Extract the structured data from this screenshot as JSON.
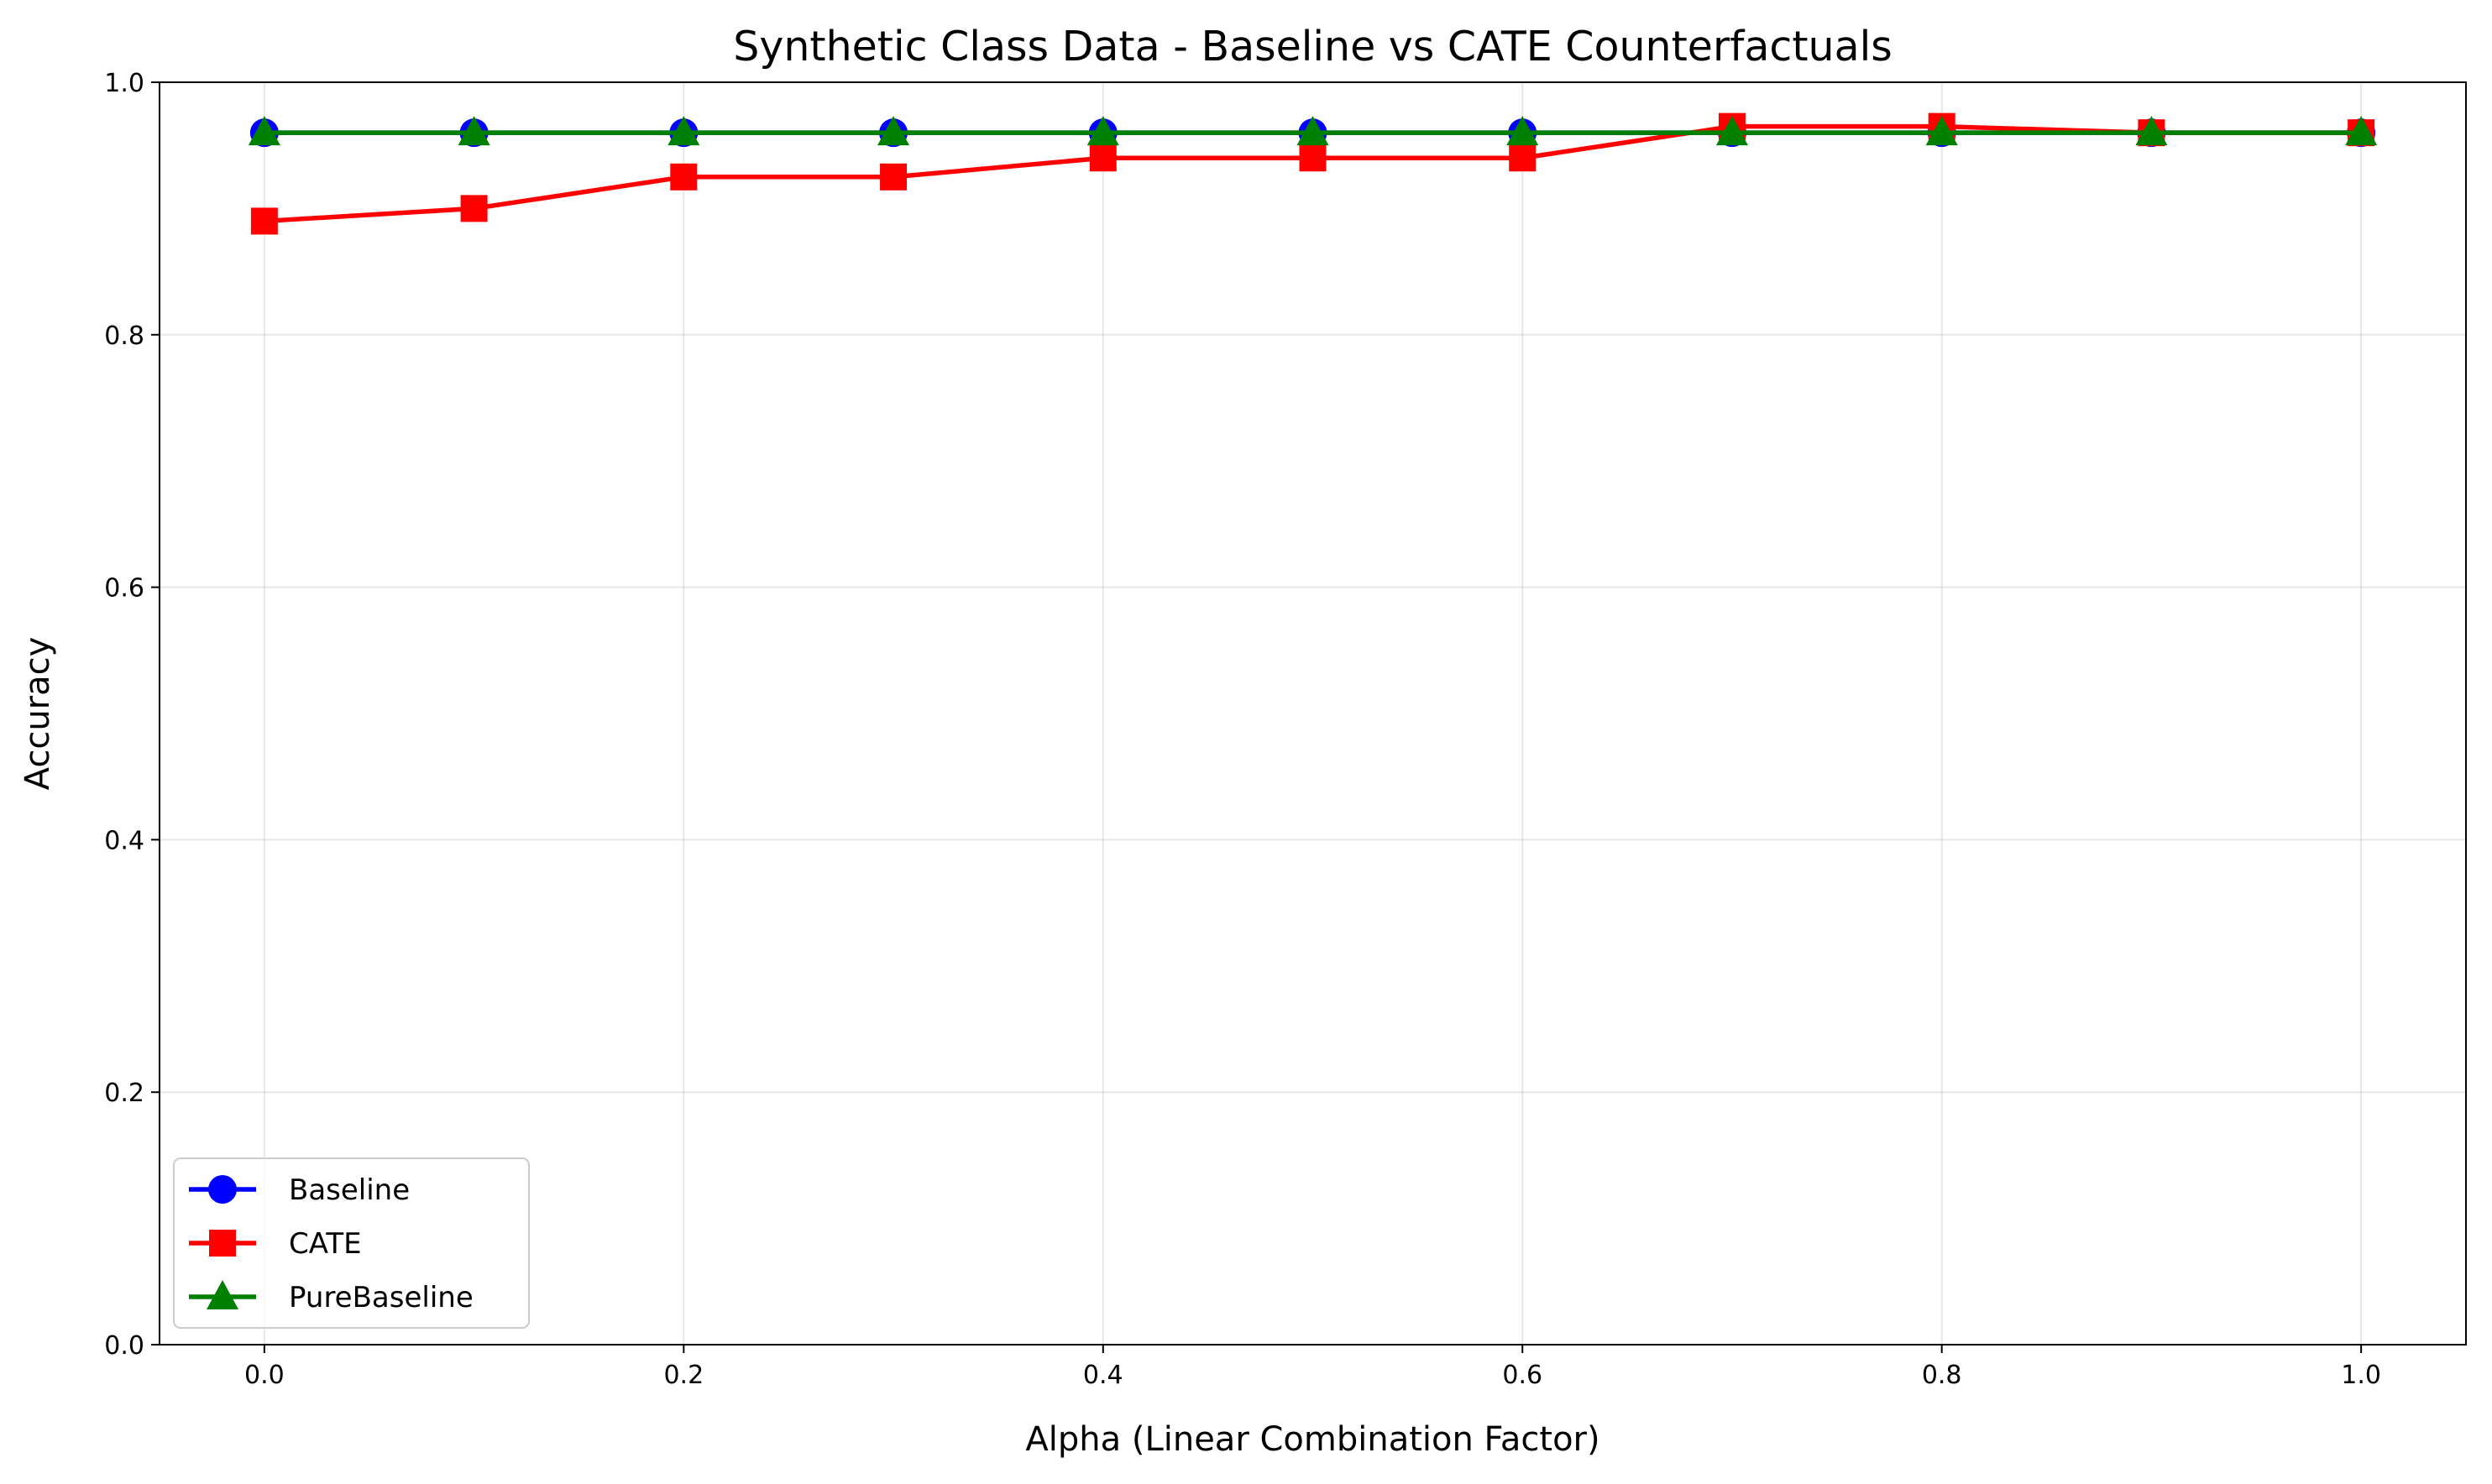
{
  "chart_data": {
    "type": "line",
    "title": "Synthetic Class Data - Baseline vs CATE Counterfactuals",
    "xlabel": "Alpha (Linear Combination Factor)",
    "ylabel": "Accuracy",
    "x": [
      0.0,
      0.1,
      0.2,
      0.3,
      0.4,
      0.5,
      0.6,
      0.7,
      0.8,
      0.9,
      1.0
    ],
    "xlim": [
      -0.05,
      1.05
    ],
    "ylim": [
      0.0,
      1.0
    ],
    "xticks": [
      "0.0",
      "0.2",
      "0.4",
      "0.6",
      "0.8",
      "1.0"
    ],
    "yticks": [
      "0.0",
      "0.2",
      "0.4",
      "0.6",
      "0.8",
      "1.0"
    ],
    "grid": true,
    "legend_position": "lower-left",
    "series": [
      {
        "name": "Baseline",
        "color": "#0000ff",
        "marker": "circle",
        "values": [
          0.96,
          0.96,
          0.96,
          0.96,
          0.96,
          0.96,
          0.96,
          0.96,
          0.96,
          0.96,
          0.96
        ]
      },
      {
        "name": "CATE",
        "color": "#ff0000",
        "marker": "square",
        "values": [
          0.89,
          0.9,
          0.925,
          0.925,
          0.94,
          0.94,
          0.94,
          0.965,
          0.965,
          0.96,
          0.96
        ]
      },
      {
        "name": "PureBaseline",
        "color": "#008000",
        "marker": "triangle",
        "values": [
          0.96,
          0.96,
          0.96,
          0.96,
          0.96,
          0.96,
          0.96,
          0.96,
          0.96,
          0.96,
          0.96
        ]
      }
    ]
  }
}
